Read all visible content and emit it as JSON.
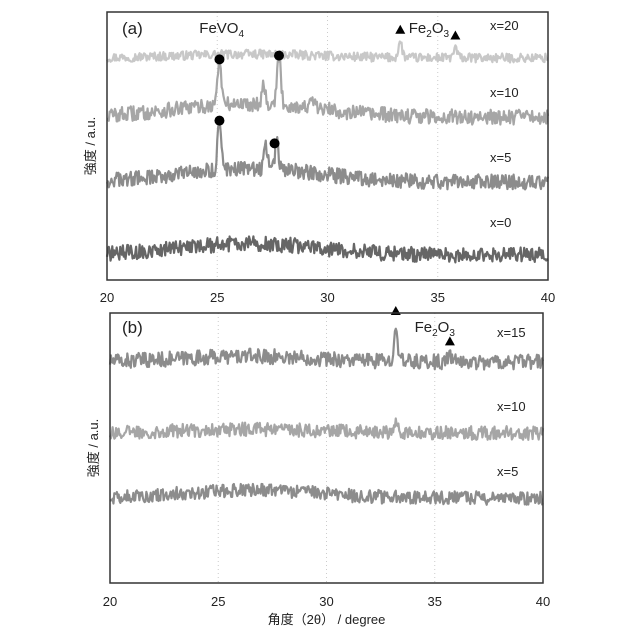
{
  "chart_data": [
    {
      "panel": "(a)",
      "type": "line",
      "xlim": [
        20,
        40
      ],
      "xticks": [
        "20",
        "25",
        "30",
        "35",
        "40"
      ],
      "ylabel": "強度 / a.u.",
      "grid": "vertical dotted",
      "series": [
        {
          "name": "x=20",
          "color": "#c8c8c8",
          "baseline": 0.0,
          "noise": 0.012,
          "hump": 0.01,
          "peaks": [
            {
              "x": 33.3,
              "h": 0.04
            },
            {
              "x": 35.8,
              "h": 0.025
            }
          ]
        },
        {
          "name": "x=10",
          "color": "#a6a6a6",
          "baseline": 0.0,
          "noise": 0.02,
          "hump": 0.035,
          "peaks": [
            {
              "x": 25.1,
              "h": 0.12
            },
            {
              "x": 27.1,
              "h": 0.05
            },
            {
              "x": 27.8,
              "h": 0.13
            },
            {
              "x": 29.3,
              "h": 0.02
            }
          ]
        },
        {
          "name": "x=5",
          "color": "#8c8c8c",
          "baseline": 0.0,
          "noise": 0.02,
          "hump": 0.035,
          "peaks": [
            {
              "x": 25.1,
              "h": 0.13
            },
            {
              "x": 27.2,
              "h": 0.06
            },
            {
              "x": 27.7,
              "h": 0.07
            }
          ]
        },
        {
          "name": "x=0",
          "color": "#666666",
          "baseline": 0.0,
          "noise": 0.02,
          "hump": 0.03,
          "peaks": []
        }
      ],
      "phases": [
        {
          "label": "FeVO",
          "sub": "4",
          "label_x": 25.2
        },
        {
          "label": "Fe",
          "sub": "2",
          "label2": "O",
          "sub2": "3",
          "label_x": 34.6
        }
      ],
      "markers": [
        {
          "shape": "circle",
          "x": 25.1,
          "series": "x=10"
        },
        {
          "shape": "circle",
          "x": 27.8,
          "series": "x=10"
        },
        {
          "shape": "circle",
          "x": 25.1,
          "series": "x=5"
        },
        {
          "shape": "circle",
          "x": 27.6,
          "series": "x=5"
        },
        {
          "shape": "triangle",
          "x": 33.3,
          "series": "x=20"
        },
        {
          "shape": "triangle",
          "x": 35.8,
          "series": "x=20"
        }
      ]
    },
    {
      "panel": "(b)",
      "type": "line",
      "xlim": [
        20,
        40
      ],
      "xticks": [
        "20",
        "25",
        "30",
        "35",
        "40"
      ],
      "ylabel": "強度 / a.u.",
      "xlabel": "角度（2θ） / degree",
      "grid": "vertical dotted",
      "series": [
        {
          "name": "x=15",
          "color": "#8c8c8c",
          "baseline": 0.0,
          "noise": 0.02,
          "hump": 0.015,
          "peaks": [
            {
              "x": 33.2,
              "h": 0.1
            },
            {
              "x": 35.7,
              "h": 0.02
            }
          ]
        },
        {
          "name": "x=10",
          "color": "#a6a6a6",
          "baseline": 0.0,
          "noise": 0.018,
          "hump": 0.01,
          "peaks": [
            {
              "x": 33.2,
              "h": 0.035
            }
          ]
        },
        {
          "name": "x=5",
          "color": "#8c8c8c",
          "baseline": 0.0,
          "noise": 0.018,
          "hump": 0.02,
          "peaks": []
        }
      ],
      "phases": [
        {
          "label": "Fe",
          "sub": "2",
          "label2": "O",
          "sub2": "3",
          "label_x": 35.0
        }
      ],
      "markers": [
        {
          "shape": "triangle",
          "x": 33.2,
          "series": "x=15"
        },
        {
          "shape": "triangle",
          "x": 35.7,
          "series": "x=15"
        }
      ]
    }
  ]
}
